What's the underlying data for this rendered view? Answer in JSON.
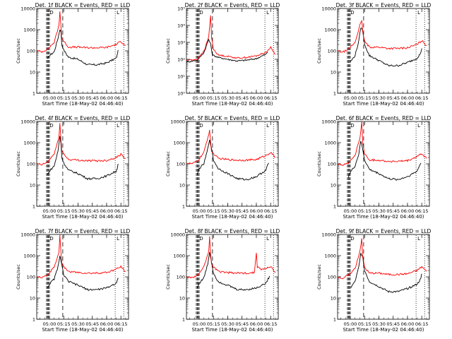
{
  "colors": {
    "events": "#000000",
    "lld": "#ff0000",
    "background": "#ffffff",
    "axes": "#000000"
  },
  "chart_data": [
    {
      "type": "line",
      "panel": 1,
      "title": "Det. 1f BLACK = Events, RED = LLD",
      "xlabel": "Start Time (18-May-02 04:46:40)",
      "ylabel": "Counts/sec",
      "y_scale": "log",
      "ylim": [
        1,
        10000
      ],
      "y_tick_labels": [
        "1",
        "10",
        "100",
        "1000",
        "10000"
      ],
      "x_tick_labels": [
        "05:00",
        "05:15",
        "05:30",
        "05:45",
        "06:00",
        "06:15"
      ],
      "corner_labels": [
        "D",
        "L"
      ],
      "series": [
        {
          "name": "BLACK = Events",
          "color": "#000000",
          "x": [
            "04:58",
            "05:00",
            "05:05",
            "05:09",
            "05:11",
            "05:12",
            "05:13",
            "05:15",
            "05:20",
            "05:30",
            "05:40",
            "05:50",
            "06:00",
            "06:05",
            "06:10",
            "06:11",
            "06:12"
          ],
          "y": [
            40,
            60,
            90,
            400,
            1000,
            900,
            200,
            110,
            50,
            40,
            22,
            22,
            27,
            35,
            45,
            60,
            110
          ]
        },
        {
          "name": "RED = LLD",
          "color": "#ff0000",
          "x": [
            "04:47",
            "04:52",
            "04:58",
            "05:05",
            "05:10",
            "05:11",
            "05:12",
            "05:13",
            "05:15",
            "05:20",
            "05:30",
            "05:40",
            "05:50",
            "06:00",
            "06:05",
            "06:10",
            "06:15",
            "06:20"
          ],
          "y": [
            100,
            90,
            120,
            250,
            1600,
            8000,
            1500,
            400,
            280,
            150,
            150,
            140,
            140,
            145,
            170,
            200,
            280,
            180
          ]
        }
      ]
    },
    {
      "type": "line",
      "panel": 2,
      "title": "Det. 2f BLACK = Events, RED = LLD",
      "xlabel": "Start Time (18-May-02 04:46:40)",
      "ylabel": "Counts/sec",
      "y_scale": "log",
      "ylim": [
        1,
        100000
      ],
      "y_tick_labels": [
        "10⁰",
        "10¹",
        "10²",
        "10³",
        "10⁴",
        "10⁵"
      ],
      "x_tick_labels": [
        "05:00",
        "05:15",
        "05:30",
        "05:45",
        "06:00",
        "06:15"
      ],
      "corner_labels": [
        "D",
        "L"
      ],
      "series": [
        {
          "name": "BLACK = Events",
          "color": "#000000",
          "x": [
            "04:47",
            "04:58",
            "05:05",
            "05:10",
            "05:12",
            "05:14",
            "05:20",
            "05:30",
            "05:40",
            "05:50",
            "06:00",
            "06:10",
            "06:12"
          ],
          "y": [
            70,
            90,
            250,
            1500,
            800,
            180,
            130,
            100,
            80,
            90,
            110,
            200,
            250
          ]
        },
        {
          "name": "RED = LLD",
          "color": "#ff0000",
          "x": [
            "04:47",
            "04:58",
            "05:05",
            "05:10",
            "05:12",
            "05:13",
            "05:15",
            "05:20",
            "05:30",
            "05:40",
            "05:50",
            "06:00",
            "06:10",
            "06:15",
            "06:20"
          ],
          "y": [
            90,
            100,
            300,
            2000,
            40000,
            2000,
            400,
            180,
            150,
            120,
            130,
            160,
            260,
            500,
            200
          ]
        }
      ]
    },
    {
      "type": "line",
      "panel": 3,
      "title": "Det. 3f BLACK = Events, RED = LLD",
      "xlabel": "Start Time (18-May-02 04:46:40)",
      "ylabel": "Counts/sec",
      "y_scale": "log",
      "ylim": [
        1,
        10000
      ],
      "y_tick_labels": [
        "1",
        "10",
        "100",
        "1000",
        "10000"
      ],
      "x_tick_labels": [
        "05:00",
        "05:15",
        "05:30",
        "05:45",
        "06:00",
        "06:15"
      ],
      "corner_labels": [
        "D",
        "L"
      ],
      "series": [
        {
          "name": "BLACK = Events",
          "color": "#000000",
          "x": [
            "05:00",
            "05:05",
            "05:09",
            "05:11",
            "05:13",
            "05:15",
            "05:20",
            "05:30",
            "05:40",
            "05:50",
            "06:00",
            "06:10",
            "06:14",
            "06:15"
          ],
          "y": [
            30,
            60,
            300,
            1300,
            900,
            200,
            60,
            35,
            20,
            20,
            28,
            45,
            80,
            130
          ]
        },
        {
          "name": "RED = LLD",
          "color": "#ff0000",
          "x": [
            "04:47",
            "04:52",
            "04:58",
            "05:05",
            "05:10",
            "05:12",
            "05:13",
            "05:15",
            "05:20",
            "05:30",
            "05:40",
            "05:50",
            "06:00",
            "06:10",
            "06:15",
            "06:20"
          ],
          "y": [
            100,
            85,
            120,
            250,
            1600,
            2500,
            900,
            280,
            150,
            150,
            130,
            130,
            140,
            200,
            300,
            180
          ]
        }
      ]
    },
    {
      "type": "line",
      "panel": 4,
      "title": "Det. 4f BLACK = Events, RED = LLD",
      "xlabel": "Start Time (18-May-02 04:46:40)",
      "ylabel": "Counts/sec",
      "y_scale": "log",
      "ylim": [
        1,
        10000
      ],
      "y_tick_labels": [
        "1",
        "10",
        "100",
        "1000",
        "10000"
      ],
      "x_tick_labels": [
        "05:00",
        "05:15",
        "05:30",
        "05:45",
        "06:00",
        "06:15"
      ],
      "corner_labels": [
        "D",
        "L"
      ],
      "series": [
        {
          "name": "BLACK = Events",
          "color": "#000000",
          "x": [
            "04:58",
            "05:00",
            "05:05",
            "05:09",
            "05:11",
            "05:12",
            "05:13",
            "05:15",
            "05:20",
            "05:30",
            "05:40",
            "05:50",
            "06:00",
            "06:05",
            "06:10",
            "06:11",
            "06:12"
          ],
          "y": [
            30,
            45,
            80,
            400,
            2000,
            1000,
            200,
            110,
            50,
            35,
            20,
            20,
            27,
            35,
            45,
            60,
            100
          ]
        },
        {
          "name": "RED = LLD",
          "color": "#ff0000",
          "x": [
            "04:47",
            "04:52",
            "04:58",
            "05:05",
            "05:10",
            "05:11",
            "05:12",
            "05:13",
            "05:15",
            "05:20",
            "05:30",
            "05:40",
            "05:50",
            "06:00",
            "06:05",
            "06:10",
            "06:15",
            "06:20"
          ],
          "y": [
            100,
            90,
            120,
            300,
            1800,
            9000,
            1500,
            400,
            300,
            160,
            150,
            140,
            140,
            145,
            170,
            200,
            280,
            180
          ]
        }
      ]
    },
    {
      "type": "line",
      "panel": 5,
      "title": "Det. 5f BLACK = Events, RED = LLD",
      "xlabel": "Start Time (18-May-02 04:46:40)",
      "ylabel": "Counts/sec",
      "y_scale": "log",
      "ylim": [
        1,
        10000
      ],
      "y_tick_labels": [
        "1",
        "10",
        "100",
        "1000",
        "10000"
      ],
      "x_tick_labels": [
        "05:00",
        "05:15",
        "05:30",
        "05:45",
        "06:00",
        "06:15"
      ],
      "corner_labels": [
        "D",
        "L"
      ],
      "series": [
        {
          "name": "BLACK = Events",
          "color": "#000000",
          "x": [
            "04:58",
            "05:00",
            "05:05",
            "05:09",
            "05:11",
            "05:13",
            "05:15",
            "05:20",
            "05:30",
            "05:40",
            "05:50",
            "06:00",
            "06:10",
            "06:12",
            "06:13"
          ],
          "y": [
            30,
            60,
            100,
            500,
            1500,
            500,
            150,
            60,
            35,
            20,
            18,
            25,
            50,
            90,
            110
          ]
        },
        {
          "name": "RED = LLD",
          "color": "#ff0000",
          "x": [
            "04:47",
            "04:52",
            "04:58",
            "05:05",
            "05:10",
            "05:11",
            "05:12",
            "05:13",
            "05:15",
            "05:20",
            "05:30",
            "05:40",
            "05:50",
            "06:00",
            "06:05",
            "06:10",
            "06:15",
            "06:20"
          ],
          "y": [
            110,
            100,
            130,
            350,
            2500,
            4000,
            1000,
            400,
            300,
            180,
            160,
            150,
            150,
            160,
            200,
            250,
            350,
            200
          ]
        }
      ]
    },
    {
      "type": "line",
      "panel": 6,
      "title": "Det. 6f BLACK = Events, RED = LLD",
      "xlabel": "Start Time (18-May-02 04:46:40)",
      "ylabel": "Counts/sec",
      "y_scale": "log",
      "ylim": [
        1,
        10000
      ],
      "y_tick_labels": [
        "1",
        "10",
        "100",
        "1000",
        "10000"
      ],
      "x_tick_labels": [
        "05:00",
        "05:15",
        "05:30",
        "05:45",
        "06:00",
        "06:15"
      ],
      "corner_labels": [
        "D",
        "L"
      ],
      "series": [
        {
          "name": "BLACK = Events",
          "color": "#000000",
          "x": [
            "04:58",
            "05:00",
            "05:05",
            "05:09",
            "05:11",
            "05:13",
            "05:15",
            "05:20",
            "05:30",
            "05:40",
            "05:50",
            "06:00",
            "06:10",
            "06:13",
            "06:14"
          ],
          "y": [
            25,
            40,
            80,
            300,
            1200,
            500,
            150,
            55,
            35,
            20,
            18,
            25,
            45,
            90,
            110
          ]
        },
        {
          "name": "RED = LLD",
          "color": "#ff0000",
          "x": [
            "04:47",
            "04:52",
            "04:58",
            "05:05",
            "05:10",
            "05:12",
            "05:13",
            "05:15",
            "05:20",
            "05:30",
            "05:40",
            "05:50",
            "06:00",
            "06:05",
            "06:10",
            "06:15",
            "06:20"
          ],
          "y": [
            100,
            90,
            110,
            250,
            1600,
            9000,
            1000,
            300,
            150,
            150,
            130,
            130,
            140,
            170,
            220,
            300,
            180
          ]
        }
      ]
    },
    {
      "type": "line",
      "panel": 7,
      "title": "Det. 7f BLACK = Events, RED = LLD",
      "xlabel": "Start Time (18-May-02 04:46:40)",
      "ylabel": "Counts/sec",
      "y_scale": "log",
      "ylim": [
        1,
        10000
      ],
      "y_tick_labels": [
        "1",
        "10",
        "100",
        "1000",
        "10000"
      ],
      "x_tick_labels": [
        "05:00",
        "05:15",
        "05:30",
        "05:45",
        "06:00",
        "06:15"
      ],
      "corner_labels": [
        "D",
        "L"
      ],
      "series": [
        {
          "name": "BLACK = Events",
          "color": "#000000",
          "x": [
            "04:58",
            "05:00",
            "05:05",
            "05:09",
            "05:11",
            "05:13",
            "05:15",
            "05:20",
            "05:30",
            "05:40",
            "05:50",
            "06:00",
            "06:10",
            "06:11",
            "06:12"
          ],
          "y": [
            30,
            45,
            80,
            300,
            900,
            400,
            120,
            60,
            40,
            25,
            25,
            30,
            50,
            70,
            90
          ]
        },
        {
          "name": "RED = LLD",
          "color": "#ff0000",
          "x": [
            "04:47",
            "04:52",
            "04:58",
            "05:05",
            "05:10",
            "05:11",
            "05:12",
            "05:13",
            "05:15",
            "05:20",
            "05:30",
            "05:40",
            "05:50",
            "06:00",
            "06:05",
            "06:10",
            "06:15",
            "06:20"
          ],
          "y": [
            100,
            90,
            120,
            300,
            1500,
            10000,
            1500,
            400,
            300,
            180,
            160,
            150,
            150,
            160,
            190,
            230,
            300,
            180
          ]
        }
      ]
    },
    {
      "type": "line",
      "panel": 8,
      "title": "Det. 8f BLACK = Events, RED = LLD",
      "xlabel": "Start Time (18-May-02 04:46:40)",
      "ylabel": "Counts/sec",
      "y_scale": "log",
      "ylim": [
        1,
        10000
      ],
      "y_tick_labels": [
        "1",
        "10",
        "100",
        "1000",
        "10000"
      ],
      "x_tick_labels": [
        "05:00",
        "05:15",
        "05:30",
        "05:45",
        "06:00",
        "06:15"
      ],
      "corner_labels": [
        "D",
        "L"
      ],
      "series": [
        {
          "name": "BLACK = Events",
          "color": "#000000",
          "x": [
            "04:58",
            "05:00",
            "05:05",
            "05:09",
            "05:11",
            "05:13",
            "05:15",
            "05:20",
            "05:30",
            "05:40",
            "05:50",
            "06:00",
            "06:10",
            "06:13",
            "06:14"
          ],
          "y": [
            30,
            50,
            90,
            400,
            1500,
            500,
            150,
            60,
            40,
            25,
            25,
            30,
            50,
            90,
            110
          ]
        },
        {
          "name": "RED = LLD",
          "color": "#ff0000",
          "x": [
            "04:47",
            "04:52",
            "04:58",
            "05:05",
            "05:10",
            "05:11",
            "05:12",
            "05:13",
            "05:15",
            "05:20",
            "05:30",
            "05:40",
            "05:50",
            "05:58",
            "06:00",
            "06:01",
            "06:05",
            "06:10",
            "06:15",
            "06:20"
          ],
          "y": [
            100,
            90,
            110,
            300,
            1600,
            8000,
            1200,
            400,
            300,
            180,
            160,
            150,
            150,
            160,
            1500,
            300,
            220,
            250,
            300,
            160
          ]
        }
      ]
    },
    {
      "type": "line",
      "panel": 9,
      "title": "Det. 9f BLACK = Events, RED = LLD",
      "xlabel": "Start Time (18-May-02 04:46:40)",
      "ylabel": "Counts/sec",
      "y_scale": "log",
      "ylim": [
        1,
        10000
      ],
      "y_tick_labels": [
        "1",
        "10",
        "100",
        "1000",
        "10000"
      ],
      "x_tick_labels": [
        "05:00",
        "05:15",
        "05:30",
        "05:45",
        "06:00",
        "06:15"
      ],
      "corner_labels": [
        "D",
        "L"
      ],
      "series": [
        {
          "name": "BLACK = Events",
          "color": "#000000",
          "x": [
            "05:00",
            "05:05",
            "05:09",
            "05:11",
            "05:13",
            "05:15",
            "05:20",
            "05:30",
            "05:40",
            "05:50",
            "06:00",
            "06:10",
            "06:14",
            "06:15"
          ],
          "y": [
            30,
            60,
            300,
            1300,
            900,
            200,
            60,
            35,
            20,
            20,
            28,
            45,
            80,
            140
          ]
        },
        {
          "name": "RED = LLD",
          "color": "#ff0000",
          "x": [
            "04:47",
            "04:52",
            "04:58",
            "05:05",
            "05:10",
            "05:12",
            "05:13",
            "05:15",
            "05:20",
            "05:30",
            "05:40",
            "05:50",
            "06:00",
            "06:10",
            "06:15",
            "06:20"
          ],
          "y": [
            100,
            85,
            120,
            250,
            1600,
            6000,
            900,
            280,
            150,
            150,
            130,
            130,
            140,
            200,
            300,
            180
          ]
        }
      ]
    }
  ]
}
